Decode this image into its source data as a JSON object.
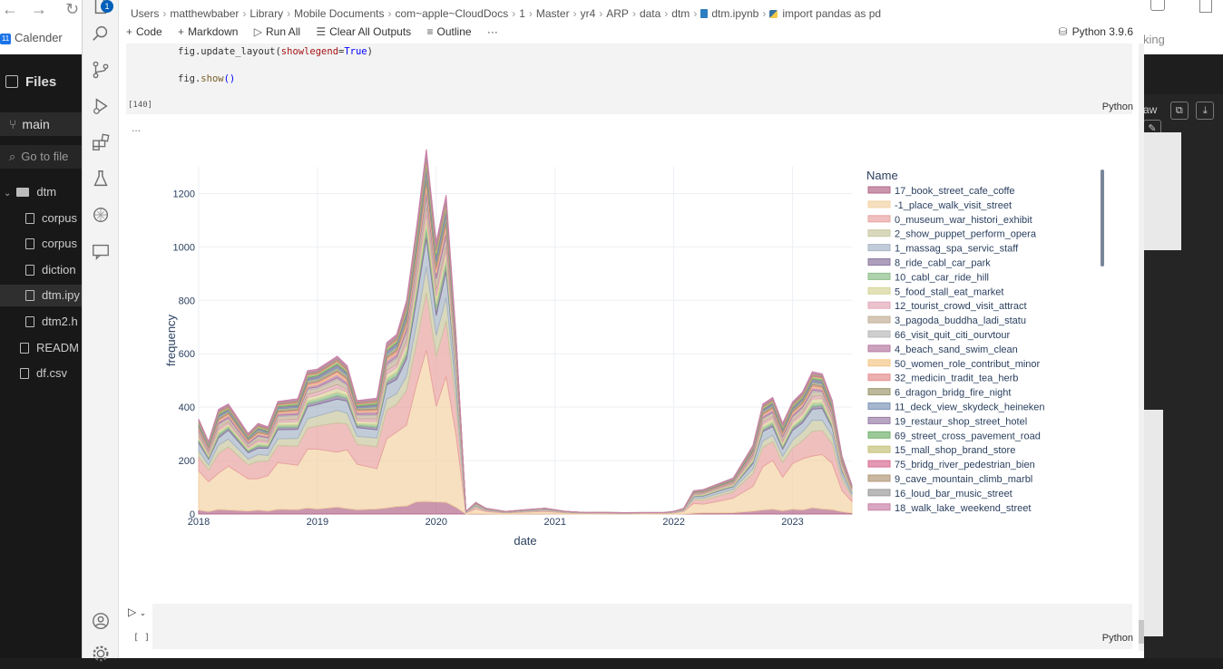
{
  "background_left": {
    "bookmark": "Calender",
    "bookmark_icon_text": "11",
    "files_header": "Files",
    "branch": "main",
    "goto_placeholder": "Go to file",
    "tree": [
      {
        "label": "dtm",
        "type": "folder"
      },
      {
        "label": "corpus",
        "type": "file"
      },
      {
        "label": "corpus",
        "type": "file"
      },
      {
        "label": "diction",
        "type": "file"
      },
      {
        "label": "dtm.ipy",
        "type": "file",
        "selected": true
      },
      {
        "label": "dtm2.h",
        "type": "file"
      },
      {
        "label": "READM",
        "type": "file"
      },
      {
        "label": "df.csv",
        "type": "file"
      }
    ]
  },
  "background_right": {
    "partial_text": "king",
    "partial_raw": "aw"
  },
  "activity_badge": "1",
  "breadcrumb": [
    "Users",
    "matthewbaber",
    "Library",
    "Mobile Documents",
    "com~apple~CloudDocs",
    "1",
    "Master",
    "yr4",
    "ARP",
    "data",
    "dtm",
    "dtm.ipynb",
    "import pandas as pd"
  ],
  "toolbar": {
    "code": "Code",
    "markdown": "Markdown",
    "run_all": "Run All",
    "clear_outputs": "Clear All Outputs",
    "outline": "Outline",
    "more": "···",
    "kernel": "Python 3.9.6"
  },
  "cell1": {
    "line1_prefix": "fig.update_layout(",
    "line1_kw": "showlegend",
    "line1_eq": "=",
    "line1_val": "True",
    "line1_suffix": ")",
    "line2_prefix": "fig.",
    "line2_fn": "show",
    "line2_suffix": "()",
    "exec_count": "[140]",
    "language": "Python"
  },
  "output_ellipsis": "...",
  "cell2": {
    "exec_count": "[ ]",
    "language": "Python"
  },
  "chart_data": {
    "type": "area",
    "xlabel": "date",
    "ylabel": "frequency",
    "legend_title": "Name",
    "legend_placement": "right",
    "grid": true,
    "x_ticks": [
      "2018",
      "2019",
      "2020",
      "2021",
      "2022",
      "2023"
    ],
    "y_ticks": [
      0,
      200,
      400,
      600,
      800,
      1000,
      1200
    ],
    "ylim": [
      0,
      1300
    ],
    "xlim": [
      "2018-01",
      "2023-07"
    ],
    "x": [
      "2018-01",
      "2018-02",
      "2018-03",
      "2018-04",
      "2018-06",
      "2018-07",
      "2018-08",
      "2018-09",
      "2018-11",
      "2018-12",
      "2019-01",
      "2019-03",
      "2019-04",
      "2019-05",
      "2019-07",
      "2019-08",
      "2019-09",
      "2019-10",
      "2019-11",
      "2019-12",
      "2020-01",
      "2020-02",
      "2020-03",
      "2020-04",
      "2020-05",
      "2020-06",
      "2020-08",
      "2020-10",
      "2020-12",
      "2021-02",
      "2021-04",
      "2021-06",
      "2021-08",
      "2021-10",
      "2021-12",
      "2022-01",
      "2022-02",
      "2022-03",
      "2022-04",
      "2022-06",
      "2022-07",
      "2022-09",
      "2022-10",
      "2022-11",
      "2022-12",
      "2023-01",
      "2023-02",
      "2023-03",
      "2023-04",
      "2023-05",
      "2023-06",
      "2023-07"
    ],
    "total": [
      330,
      250,
      395,
      370,
      270,
      340,
      300,
      390,
      480,
      500,
      500,
      590,
      500,
      380,
      430,
      590,
      620,
      860,
      1000,
      1260,
      1010,
      1080,
      600,
      10,
      40,
      20,
      10,
      15,
      20,
      10,
      5,
      5,
      5,
      5,
      5,
      10,
      20,
      80,
      90,
      110,
      120,
      250,
      380,
      400,
      340,
      400,
      420,
      520,
      480,
      380,
      210,
      100
    ],
    "series": [
      {
        "name": "17_book_street_cafe_coffe",
        "color": "#b46a8a",
        "share": 0.04
      },
      {
        "name": "-1_place_walk_visit_street",
        "color": "#f2d3a5",
        "share": 0.4
      },
      {
        "name": "0_museum_war_histori_exhibit",
        "color": "#e8a4a2",
        "share": 0.17
      },
      {
        "name": "2_show_puppet_perform_opera",
        "color": "#c9c7a0",
        "share": 0.07
      },
      {
        "name": "1_massag_spa_servic_staff",
        "color": "#a8b6c7",
        "share": 0.08
      },
      {
        "name": "8_ride_cabl_car_park",
        "color": "#8b78a0",
        "share": 0.02
      },
      {
        "name": "10_cabl_car_ride_hill",
        "color": "#8fbf8a",
        "share": 0.02
      },
      {
        "name": "5_food_stall_eat_market",
        "color": "#d7d49a",
        "share": 0.03
      },
      {
        "name": "12_tourist_crowd_visit_attract",
        "color": "#e3a8b8",
        "share": 0.02
      },
      {
        "name": "3_pagoda_buddha_ladi_statu",
        "color": "#c4b098",
        "share": 0.03
      },
      {
        "name": "66_visit_quit_citi_ourvtour",
        "color": "#b9b9b9",
        "share": 0.01
      },
      {
        "name": "4_beach_sand_swim_clean",
        "color": "#b87aa3",
        "share": 0.02
      },
      {
        "name": "50_women_role_contribut_minor",
        "color": "#f4c88a",
        "share": 0.01
      },
      {
        "name": "32_medicin_tradit_tea_herb",
        "color": "#e48f8f",
        "share": 0.01
      },
      {
        "name": "6_dragon_bridg_fire_night",
        "color": "#9e9a70",
        "share": 0.02
      },
      {
        "name": "11_deck_view_skydeck_heineken",
        "color": "#7f97b8",
        "share": 0.01
      },
      {
        "name": "19_restaur_shop_street_hotel",
        "color": "#9a7fa8",
        "share": 0.01
      },
      {
        "name": "69_street_cross_pavement_road",
        "color": "#72b26e",
        "share": 0.01
      },
      {
        "name": "15_mall_shop_brand_store",
        "color": "#c7c27a",
        "share": 0.01
      },
      {
        "name": "75_bridg_river_pedestrian_bien",
        "color": "#d96e94",
        "share": 0.005
      },
      {
        "name": "9_cave_mountain_climb_marbl",
        "color": "#b4987a",
        "share": 0.01
      },
      {
        "name": "16_loud_bar_music_street",
        "color": "#9b9b9b",
        "share": 0.005
      },
      {
        "name": "18_walk_lake_weekend_street",
        "color": "#c982a8",
        "share": 0.01
      }
    ]
  }
}
